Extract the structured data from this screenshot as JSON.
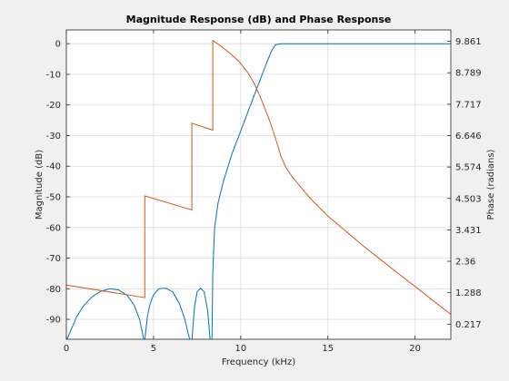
{
  "chart_data": {
    "type": "line",
    "title": "Magnitude Response (dB) and Phase Response",
    "xlabel": "Frequency (kHz)",
    "ylabel_left": "Magnitude (dB)",
    "ylabel_right": "Phase (radians)",
    "xlim": [
      0,
      22.05
    ],
    "ylim_left": [
      -96.5,
      4.5
    ],
    "ylim_right": [
      -0.3,
      10.25
    ],
    "x_ticks": [
      0,
      5,
      10,
      15,
      20
    ],
    "x_tick_labels": [
      "0",
      "5",
      "10",
      "15",
      "20"
    ],
    "y_left_ticks": [
      0,
      -10,
      -20,
      -30,
      -40,
      -50,
      -60,
      -70,
      -80,
      -90
    ],
    "y_left_tick_labels": [
      "0",
      "-10",
      "-20",
      "-30",
      "-40",
      "-50",
      "-60",
      "-70",
      "-80",
      "-90"
    ],
    "y_right_ticks": [
      9.861,
      8.789,
      7.717,
      6.646,
      5.574,
      4.503,
      3.431,
      2.36,
      1.288,
      0.217
    ],
    "y_right_tick_labels": [
      "9.861",
      "8.789",
      "7.717",
      "6.646",
      "5.574",
      "4.503",
      "3.431",
      "2.36",
      "1.288",
      "0.217"
    ],
    "grid": true,
    "colors": {
      "magnitude": "#0072bd",
      "phase": "#d95319",
      "grid": "#dcdcdc",
      "axes_bg": "#ffffff",
      "figure_bg": "#f0f0f0"
    },
    "series": [
      {
        "axis": "left",
        "x": [
          0,
          0.3,
          0.6,
          1.0,
          1.5,
          2.0,
          2.5,
          3.0,
          3.5,
          3.9,
          4.2,
          4.35,
          4.45,
          4.5,
          4.55,
          4.65,
          4.8,
          5.0,
          5.3,
          5.7,
          6.1,
          6.5,
          6.8,
          7.0,
          7.1,
          7.2,
          7.25,
          7.35,
          7.5,
          7.7,
          7.9,
          8.1,
          8.25,
          8.35,
          8.4,
          8.5,
          8.7,
          9.0,
          9.5,
          10.0,
          10.5,
          11.0,
          11.5,
          11.8,
          12.0,
          12.3,
          12.6,
          13.0,
          14.0,
          16.0,
          18.0,
          20.0,
          22.05
        ],
        "y": [
          -97,
          -93,
          -89,
          -85.5,
          -82.5,
          -80.8,
          -80,
          -80.4,
          -82.2,
          -85.5,
          -90,
          -94,
          -97,
          -97,
          -94,
          -89,
          -85,
          -82,
          -80,
          -79.8,
          -81,
          -85,
          -90,
          -95,
          -97,
          -97,
          -93,
          -86,
          -81,
          -79.8,
          -81,
          -87,
          -97,
          -97,
          -75,
          -60,
          -52,
          -45,
          -36,
          -28.5,
          -21,
          -13.5,
          -6,
          -2,
          -0.3,
          0,
          0,
          0,
          0,
          0,
          0,
          0,
          0
        ]
      },
      {
        "axis": "right",
        "x": [
          0,
          4.5,
          4.5,
          7.2,
          7.2,
          8.4,
          8.4,
          8.9,
          9.4,
          9.9,
          10.4,
          10.8,
          11.2,
          11.6,
          12.0,
          12.3,
          12.6,
          13.0,
          14.0,
          15.0,
          16.0,
          17.0,
          18.0,
          19.0,
          20.0,
          21.0,
          22.05
        ],
        "y": [
          1.55,
          1.12,
          4.59,
          4.11,
          7.07,
          6.83,
          9.89,
          9.68,
          9.45,
          9.18,
          8.8,
          8.4,
          7.85,
          7.25,
          6.55,
          5.95,
          5.55,
          5.2,
          4.5,
          3.9,
          3.4,
          2.9,
          2.43,
          1.96,
          1.5,
          1.03,
          0.55
        ]
      }
    ]
  }
}
